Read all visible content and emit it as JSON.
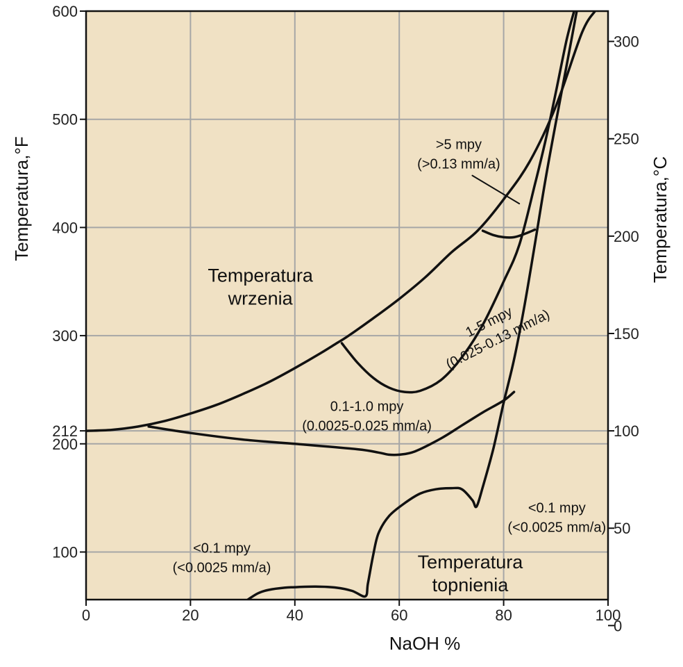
{
  "chart_data": {
    "type": "line",
    "xlabel": "NaOH   %",
    "ylabel_left": "Temperatura,°F",
    "ylabel_right": "Temperatura,°C",
    "xlim": [
      0,
      100
    ],
    "ylim_left_F": [
      56,
      600
    ],
    "ylim_right_C": [
      0,
      315
    ],
    "x_ticks": [
      "0",
      "20",
      "40",
      "60",
      "80",
      "100"
    ],
    "y_ticks_left": [
      "600",
      "500",
      "400",
      "300",
      "212",
      "200",
      "100"
    ],
    "y_ticks_right": [
      "300",
      "250",
      "200",
      "150",
      "100",
      "50",
      "0"
    ],
    "grid": true,
    "background_color": "#f0e1c4",
    "line_color": "#111111",
    "grid_color": "#a6a6a6",
    "series": [
      {
        "name": "Temperatura wrzenia",
        "points": [
          [
            0,
            212
          ],
          [
            5,
            213
          ],
          [
            10,
            216
          ],
          [
            15,
            221
          ],
          [
            20,
            228
          ],
          [
            25,
            236
          ],
          [
            30,
            246
          ],
          [
            35,
            257
          ],
          [
            40,
            270
          ],
          [
            45,
            284
          ],
          [
            48,
            293
          ],
          [
            50,
            299
          ],
          [
            55,
            316
          ],
          [
            60,
            334
          ],
          [
            65,
            354
          ],
          [
            70,
            377
          ],
          [
            75,
            397
          ],
          [
            80,
            426
          ],
          [
            85,
            461
          ],
          [
            90,
            512
          ],
          [
            95,
            580
          ],
          [
            97.5,
            600
          ]
        ]
      },
      {
        "name": "Temperatura topnienia",
        "points": [
          [
            31,
            56
          ],
          [
            33,
            62
          ],
          [
            35,
            65
          ],
          [
            38,
            67
          ],
          [
            40,
            67.5
          ],
          [
            44,
            68
          ],
          [
            48,
            67
          ],
          [
            51,
            64
          ],
          [
            53.5,
            59
          ],
          [
            54,
            71
          ],
          [
            55,
            97
          ],
          [
            56,
            117
          ],
          [
            58,
            133
          ],
          [
            61,
            145
          ],
          [
            64,
            154
          ],
          [
            67,
            158
          ],
          [
            70,
            159
          ],
          [
            72,
            158
          ],
          [
            74,
            148
          ],
          [
            74.8,
            142
          ],
          [
            76,
            160
          ],
          [
            78,
            195
          ],
          [
            80,
            238
          ],
          [
            82,
            278
          ],
          [
            84,
            328
          ],
          [
            86,
            385
          ],
          [
            88,
            444
          ],
          [
            90,
            497
          ],
          [
            92,
            548
          ],
          [
            94,
            600
          ]
        ]
      },
      {
        "name": "0.1-1.0 mpy / <0.1 mpy",
        "points": [
          [
            12,
            216
          ],
          [
            20,
            210
          ],
          [
            30,
            204
          ],
          [
            40,
            200
          ],
          [
            52,
            195
          ],
          [
            56,
            192
          ],
          [
            58,
            190
          ],
          [
            60,
            190
          ],
          [
            63,
            193
          ],
          [
            68,
            205
          ],
          [
            72,
            217
          ],
          [
            76,
            229
          ],
          [
            80,
            240
          ],
          [
            82,
            248
          ]
        ]
      },
      {
        "name": "1-5 mpy / 0.1-1.0 mpy",
        "points": [
          [
            49,
            293
          ],
          [
            52,
            275
          ],
          [
            55,
            261
          ],
          [
            58,
            252
          ],
          [
            61,
            248
          ],
          [
            64,
            249
          ],
          [
            68,
            259
          ],
          [
            72,
            280
          ],
          [
            76,
            310
          ],
          [
            80,
            350
          ],
          [
            83,
            384
          ],
          [
            86,
            440
          ],
          [
            88,
            480
          ],
          [
            90,
            525
          ],
          [
            92,
            572
          ],
          [
            93.5,
            600
          ]
        ]
      },
      {
        "name": ">5 mpy / 1-5 mpy",
        "points": [
          [
            76,
            397
          ],
          [
            78,
            393
          ],
          [
            80,
            391
          ],
          [
            82,
            391
          ],
          [
            84,
            394
          ],
          [
            86,
            398
          ]
        ]
      },
      {
        "name": ">5 mpy leader",
        "points": [
          [
            74,
            448
          ],
          [
            83,
            422
          ]
        ]
      }
    ],
    "annotations": [
      {
        "text_lines": [
          "Temperatura",
          "wrzenia"
        ],
        "x": 33.4,
        "y": 345
      },
      {
        "text_lines": [
          ">5 mpy",
          "(>0.13 mm/a)"
        ],
        "x": 71.4,
        "y": 468
      },
      {
        "text_lines": [
          "1-5 mpy",
          "(0.025-0.13 mm/a)"
        ],
        "x": 78.0,
        "y": 305,
        "rotation": -27
      },
      {
        "text_lines": [
          "0.1-1.0 mpy",
          "(0.0025-0.025 mm/a)"
        ],
        "x": 53.8,
        "y": 226
      },
      {
        "text_lines": [
          "<0.1 mpy",
          "(<0.0025 mm/a)"
        ],
        "x": 26.0,
        "y": 95
      },
      {
        "text_lines": [
          "<0.1 mpy",
          "(<0.0025 mm/a)"
        ],
        "x": 90.2,
        "y": 132
      },
      {
        "text_lines": [
          "Temperatura",
          "topnienia"
        ],
        "x": 73.6,
        "y": 80
      }
    ]
  }
}
